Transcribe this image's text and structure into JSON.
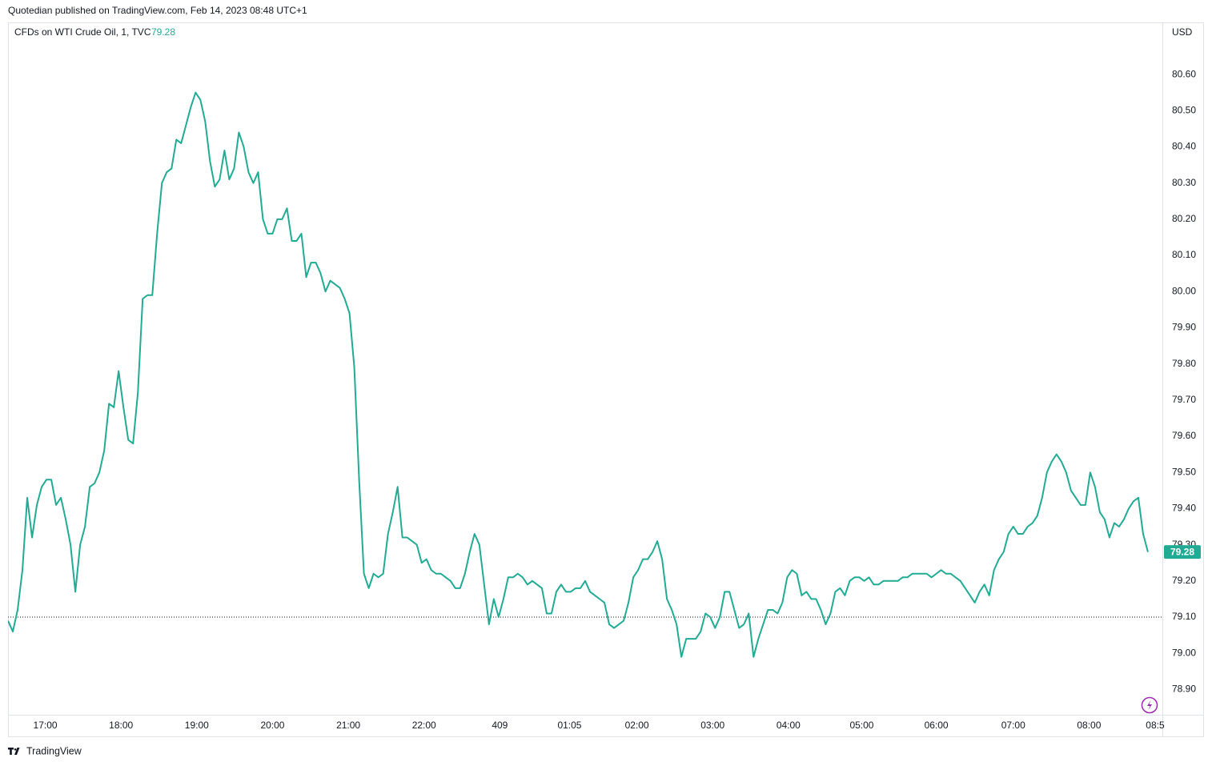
{
  "header": {
    "text": "Quotedian published on TradingView.com, Feb 14, 2023 08:48 UTC+1"
  },
  "chart_data": {
    "type": "line",
    "title": "CFDs on WTI Crude Oil, 1, TVC",
    "last_value": 79.28,
    "currency": "USD",
    "color": "#22ab94",
    "x": [
      0,
      4,
      8,
      12,
      16,
      20,
      24,
      28,
      32,
      36,
      40,
      44,
      48,
      52,
      56,
      60,
      64,
      68,
      72,
      76,
      80,
      84,
      88,
      92,
      96,
      100,
      104,
      108,
      112,
      116,
      120,
      124,
      128,
      132,
      136,
      140,
      144,
      148,
      152,
      156,
      160,
      164,
      168,
      172,
      176,
      180,
      184,
      188,
      192,
      196,
      200,
      204,
      208,
      212,
      216,
      220,
      224,
      228,
      232,
      236,
      240,
      244,
      248,
      252,
      256,
      260,
      264,
      268,
      272,
      276,
      280,
      284,
      288,
      292,
      296,
      300,
      304,
      308,
      312,
      316,
      320,
      324,
      328,
      332,
      336,
      340,
      344,
      348,
      352,
      356,
      360,
      364,
      368,
      372,
      376,
      380,
      384,
      388,
      392,
      396,
      400,
      404,
      408,
      412,
      416,
      420,
      424,
      428,
      432,
      436,
      440,
      444,
      448,
      452,
      456,
      460,
      464,
      468,
      472,
      476,
      480,
      484,
      488,
      492,
      496,
      500,
      504,
      508,
      512,
      516,
      520,
      524,
      528,
      532,
      536,
      540,
      544,
      548,
      552,
      556,
      560,
      564,
      568,
      572,
      576,
      580,
      584,
      588,
      592,
      596,
      600,
      604,
      608,
      612,
      616,
      620,
      624,
      628,
      632,
      636,
      640,
      644,
      648,
      652,
      656,
      660,
      664,
      668,
      672,
      676,
      680,
      684,
      688,
      692,
      696,
      700,
      704,
      708,
      712,
      716,
      720,
      724,
      728,
      732,
      736,
      740,
      744,
      748,
      752,
      756,
      760,
      764,
      768,
      772,
      776,
      780,
      784,
      788,
      792,
      796,
      800,
      804,
      808,
      812,
      816,
      820,
      824,
      828,
      832,
      836,
      840,
      844,
      848,
      852,
      856,
      860,
      864,
      868,
      872,
      876,
      880,
      884,
      888,
      892,
      896,
      900,
      904,
      908,
      912,
      916,
      920,
      924,
      928,
      932,
      936,
      940,
      944,
      948
    ],
    "values": [
      79.09,
      79.06,
      79.12,
      79.23,
      79.43,
      79.32,
      79.41,
      79.46,
      79.48,
      79.48,
      79.41,
      79.43,
      79.37,
      79.3,
      79.17,
      79.3,
      79.35,
      79.46,
      79.47,
      79.5,
      79.56,
      79.69,
      79.68,
      79.78,
      79.68,
      79.59,
      79.58,
      79.72,
      79.98,
      79.99,
      79.99,
      80.16,
      80.3,
      80.33,
      80.34,
      80.42,
      80.41,
      80.46,
      80.51,
      80.55,
      80.53,
      80.47,
      80.36,
      80.29,
      80.31,
      80.39,
      80.31,
      80.34,
      80.44,
      80.4,
      80.33,
      80.3,
      80.33,
      80.2,
      80.16,
      80.16,
      80.2,
      80.2,
      80.23,
      80.14,
      80.14,
      80.16,
      80.04,
      80.08,
      80.08,
      80.05,
      80.0,
      80.03,
      80.02,
      80.01,
      79.98,
      79.94,
      79.79,
      79.48,
      79.22,
      79.18,
      79.22,
      79.21,
      79.22,
      79.33,
      79.39,
      79.46,
      79.32,
      79.32,
      79.31,
      79.3,
      79.25,
      79.26,
      79.23,
      79.22,
      79.22,
      79.21,
      79.2,
      79.18,
      79.18,
      79.22,
      79.28,
      79.33,
      79.3,
      79.19,
      79.08,
      79.15,
      79.1,
      79.15,
      79.21,
      79.21,
      79.22,
      79.21,
      79.19,
      79.2,
      79.19,
      79.18,
      79.11,
      79.11,
      79.17,
      79.19,
      79.17,
      79.17,
      79.18,
      79.18,
      79.2,
      79.17,
      79.16,
      79.15,
      79.14,
      79.08,
      79.07,
      79.08,
      79.09,
      79.14,
      79.21,
      79.23,
      79.26,
      79.26,
      79.28,
      79.31,
      79.26,
      79.15,
      79.12,
      79.08,
      78.99,
      79.04,
      79.04,
      79.04,
      79.06,
      79.11,
      79.1,
      79.07,
      79.1,
      79.17,
      79.17,
      79.12,
      79.07,
      79.08,
      79.11,
      78.99,
      79.04,
      79.08,
      79.12,
      79.12,
      79.11,
      79.14,
      79.21,
      79.23,
      79.22,
      79.16,
      79.17,
      79.15,
      79.15,
      79.12,
      79.08,
      79.11,
      79.17,
      79.18,
      79.16,
      79.2,
      79.21,
      79.21,
      79.2,
      79.21,
      79.19,
      79.19,
      79.2,
      79.2,
      79.2,
      79.2,
      79.21,
      79.21,
      79.22,
      79.22,
      79.22,
      79.22,
      79.21,
      79.22,
      79.23,
      79.22,
      79.22,
      79.21,
      79.2,
      79.18,
      79.16,
      79.14,
      79.17,
      79.19,
      79.16,
      79.23,
      79.26,
      79.28,
      79.33,
      79.35,
      79.33,
      79.33,
      79.35,
      79.36,
      79.38,
      79.43,
      79.5,
      79.53,
      79.55,
      79.53,
      79.5,
      79.45,
      79.43,
      79.41,
      79.41,
      79.5,
      79.46,
      79.39,
      79.37,
      79.32,
      79.36,
      79.35,
      79.37,
      79.4,
      79.42,
      79.43,
      79.33,
      79.28
    ],
    "reference_line": 79.1,
    "xlim": [
      0,
      960
    ],
    "xticks": [
      {
        "value": 31,
        "label": "17:00"
      },
      {
        "value": 94,
        "label": "18:00"
      },
      {
        "value": 157,
        "label": "19:00"
      },
      {
        "value": 220,
        "label": "20:00"
      },
      {
        "value": 283,
        "label": "21:00"
      },
      {
        "value": 346,
        "label": "22:00"
      },
      409,
      {
        "value": 467,
        "label": "01:05"
      },
      {
        "value": 523,
        "label": "02:00"
      },
      {
        "value": 586,
        "label": "03:00"
      },
      {
        "value": 649,
        "label": "04:00"
      },
      {
        "value": 710,
        "label": "05:00"
      },
      {
        "value": 772,
        "label": "06:00"
      },
      {
        "value": 836,
        "label": "07:00"
      },
      {
        "value": 899,
        "label": "08:00"
      },
      {
        "value": 954,
        "label": "08:5"
      }
    ],
    "ylim": [
      78.83,
      80.744
    ],
    "yticks": [
      {
        "value": 78.9,
        "label": "78.90"
      },
      {
        "value": 79.0,
        "label": "79.00"
      },
      {
        "value": 79.1,
        "label": "79.10"
      },
      {
        "value": 79.2,
        "label": "79.20"
      },
      {
        "value": 79.3,
        "label": "79.30"
      },
      {
        "value": 79.4,
        "label": "79.40"
      },
      {
        "value": 79.5,
        "label": "79.50"
      },
      {
        "value": 79.6,
        "label": "79.60"
      },
      {
        "value": 79.7,
        "label": "79.70"
      },
      {
        "value": 79.8,
        "label": "79.80"
      },
      {
        "value": 79.9,
        "label": "79.90"
      },
      {
        "value": 80.0,
        "label": "80.00"
      },
      {
        "value": 80.1,
        "label": "80.10"
      },
      {
        "value": 80.2,
        "label": "80.20"
      },
      {
        "value": 80.3,
        "label": "80.30"
      },
      {
        "value": 80.4,
        "label": "80.40"
      },
      {
        "value": 80.5,
        "label": "80.50"
      },
      {
        "value": 80.6,
        "label": "80.60"
      }
    ]
  },
  "footer": {
    "brand": "TradingView"
  }
}
